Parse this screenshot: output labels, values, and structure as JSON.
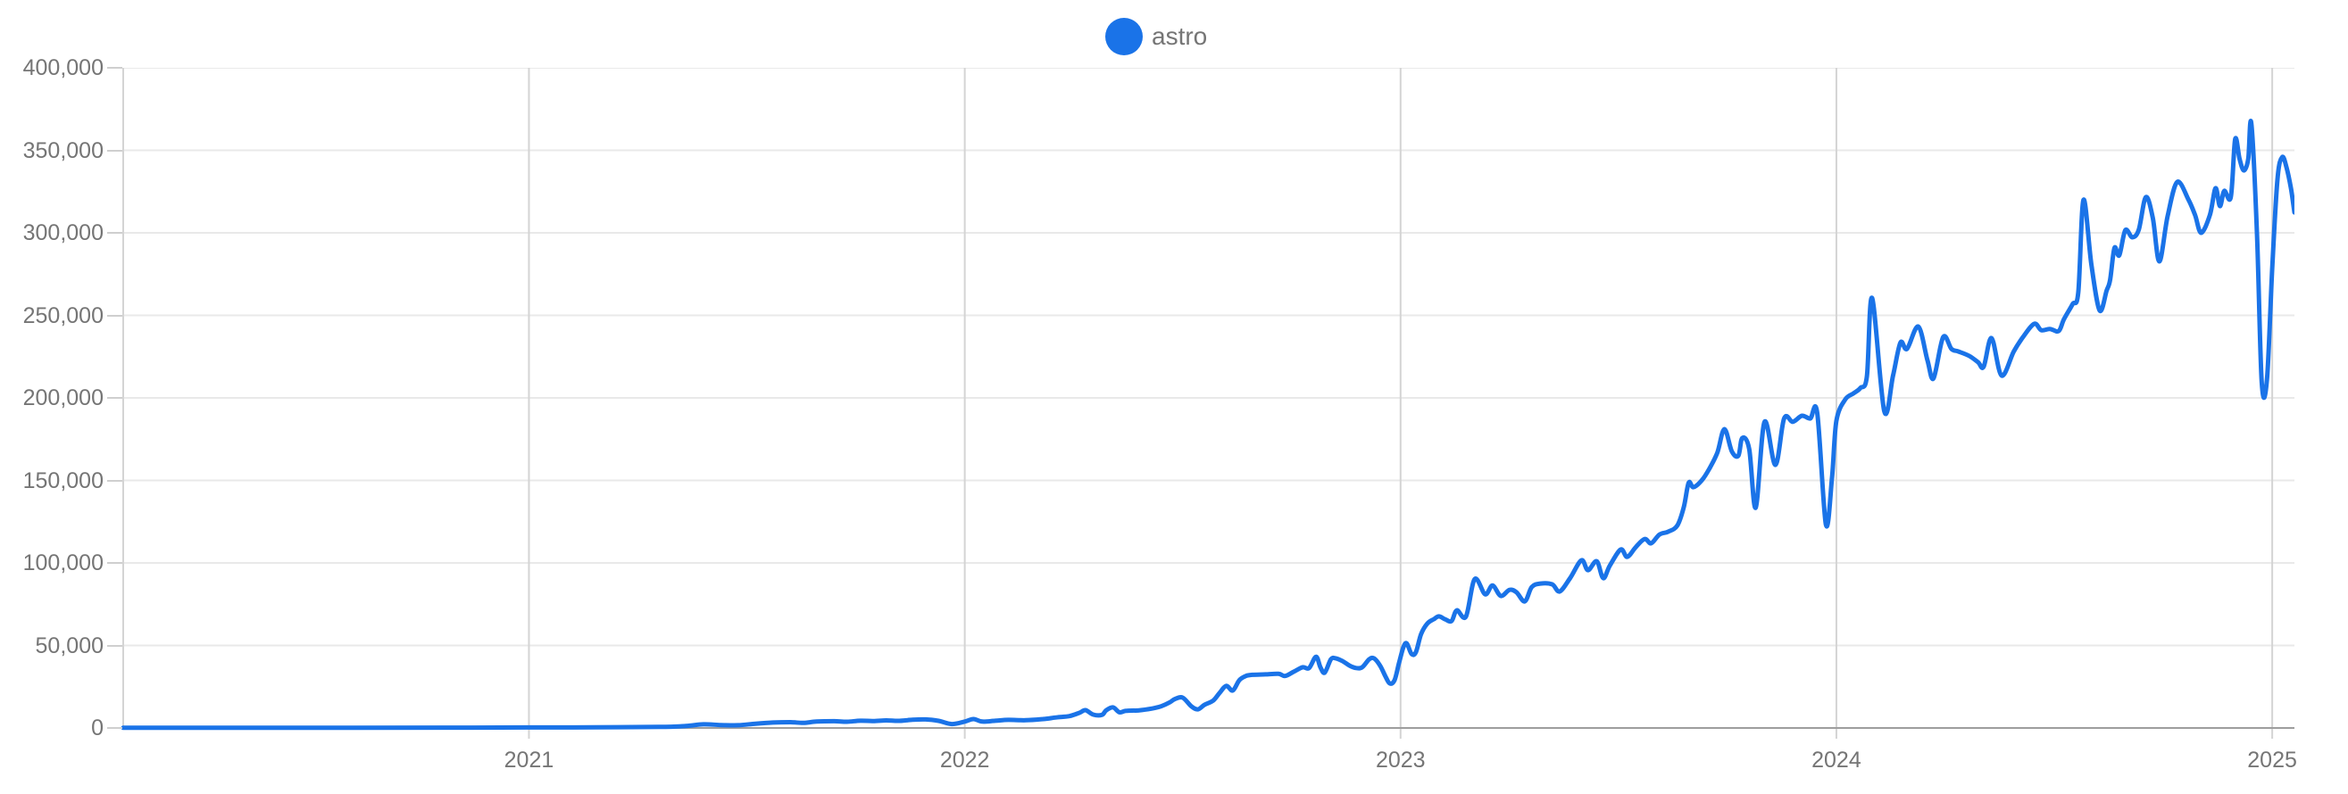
{
  "chart_data": {
    "type": "line",
    "title": "",
    "legend_position": "top-center",
    "x_axis": {
      "unit": "decimal_year",
      "range": [
        2020.069,
        2025.051
      ],
      "ticks": [
        2021,
        2022,
        2023,
        2024,
        2025
      ],
      "tick_labels": [
        "2021",
        "2022",
        "2023",
        "2024",
        "2025"
      ],
      "grid": true
    },
    "y_axis": {
      "range": [
        0,
        400000
      ],
      "ticks": [
        0,
        50000,
        100000,
        150000,
        200000,
        250000,
        300000,
        350000,
        400000
      ],
      "tick_labels": [
        "0",
        "50,000",
        "100,000",
        "150,000",
        "200,000",
        "250,000",
        "300,000",
        "350,000",
        "400,000"
      ],
      "grid": true
    },
    "style": {
      "h_grid_color": "#e9e9e9",
      "v_grid_color": "#d4d4d4",
      "axis_line_color": "#9e9e9e",
      "tick_dash_color": "#cfcfcf",
      "label_color": "#757575",
      "line_width": 5
    },
    "series": [
      {
        "name": "astro",
        "color": "#1a73e8",
        "points": [
          [
            2020.069,
            100
          ],
          [
            2020.2,
            120
          ],
          [
            2020.4,
            150
          ],
          [
            2020.6,
            180
          ],
          [
            2020.8,
            220
          ],
          [
            2021.0,
            300
          ],
          [
            2021.15,
            400
          ],
          [
            2021.3,
            650
          ],
          [
            2021.36,
            1200
          ],
          [
            2021.4,
            2200
          ],
          [
            2021.44,
            1800
          ],
          [
            2021.48,
            1700
          ],
          [
            2021.52,
            2600
          ],
          [
            2021.56,
            3300
          ],
          [
            2021.6,
            3500
          ],
          [
            2021.63,
            3100
          ],
          [
            2021.66,
            3900
          ],
          [
            2021.7,
            4100
          ],
          [
            2021.73,
            3800
          ],
          [
            2021.76,
            4400
          ],
          [
            2021.79,
            4200
          ],
          [
            2021.82,
            4600
          ],
          [
            2021.85,
            4300
          ],
          [
            2021.88,
            5000
          ],
          [
            2021.91,
            5200
          ],
          [
            2021.94,
            4300
          ],
          [
            2021.97,
            2400
          ],
          [
            2022.0,
            3900
          ],
          [
            2022.02,
            5400
          ],
          [
            2022.04,
            3900
          ],
          [
            2022.07,
            4400
          ],
          [
            2022.1,
            4900
          ],
          [
            2022.14,
            4700
          ],
          [
            2022.18,
            5400
          ],
          [
            2022.21,
            6400
          ],
          [
            2022.24,
            7200
          ],
          [
            2022.263,
            9200
          ],
          [
            2022.277,
            10800
          ],
          [
            2022.295,
            8100
          ],
          [
            2022.315,
            8000
          ],
          [
            2022.324,
            10600
          ],
          [
            2022.34,
            12500
          ],
          [
            2022.355,
            9500
          ],
          [
            2022.37,
            10400
          ],
          [
            2022.4,
            10700
          ],
          [
            2022.43,
            11800
          ],
          [
            2022.45,
            13100
          ],
          [
            2022.47,
            15500
          ],
          [
            2022.482,
            17500
          ],
          [
            2022.5,
            18400
          ],
          [
            2022.52,
            13100
          ],
          [
            2022.535,
            11300
          ],
          [
            2022.55,
            14000
          ],
          [
            2022.57,
            16600
          ],
          [
            2022.584,
            21000
          ],
          [
            2022.6,
            25500
          ],
          [
            2022.615,
            22700
          ],
          [
            2022.63,
            29000
          ],
          [
            2022.645,
            31500
          ],
          [
            2022.66,
            32200
          ],
          [
            2022.69,
            32500
          ],
          [
            2022.72,
            32800
          ],
          [
            2022.735,
            31500
          ],
          [
            2022.755,
            34100
          ],
          [
            2022.775,
            36800
          ],
          [
            2022.79,
            36300
          ],
          [
            2022.806,
            43200
          ],
          [
            2022.816,
            36800
          ],
          [
            2022.826,
            33500
          ],
          [
            2022.84,
            41600
          ],
          [
            2022.851,
            42200
          ],
          [
            2022.867,
            40500
          ],
          [
            2022.883,
            37800
          ],
          [
            2022.898,
            36300
          ],
          [
            2022.912,
            36800
          ],
          [
            2022.928,
            41600
          ],
          [
            2022.939,
            42200
          ],
          [
            2022.953,
            37800
          ],
          [
            2022.965,
            31400
          ],
          [
            2022.975,
            27000
          ],
          [
            2022.986,
            28900
          ],
          [
            2022.996,
            38900
          ],
          [
            2023.006,
            48600
          ],
          [
            2023.014,
            51300
          ],
          [
            2023.025,
            44900
          ],
          [
            2023.035,
            45900
          ],
          [
            2023.047,
            56800
          ],
          [
            2023.061,
            63200
          ],
          [
            2023.076,
            65900
          ],
          [
            2023.088,
            67600
          ],
          [
            2023.102,
            65900
          ],
          [
            2023.117,
            64800
          ],
          [
            2023.129,
            71300
          ],
          [
            2023.15,
            67500
          ],
          [
            2023.17,
            90200
          ],
          [
            2023.194,
            81000
          ],
          [
            2023.211,
            86400
          ],
          [
            2023.23,
            80000
          ],
          [
            2023.25,
            83700
          ],
          [
            2023.266,
            82200
          ],
          [
            2023.285,
            76700
          ],
          [
            2023.301,
            85400
          ],
          [
            2023.321,
            87500
          ],
          [
            2023.348,
            87000
          ],
          [
            2023.365,
            82700
          ],
          [
            2023.389,
            90800
          ],
          [
            2023.415,
            101600
          ],
          [
            2023.43,
            95600
          ],
          [
            2023.45,
            101000
          ],
          [
            2023.465,
            90800
          ],
          [
            2023.48,
            98300
          ],
          [
            2023.505,
            108100
          ],
          [
            2023.52,
            103700
          ],
          [
            2023.54,
            109700
          ],
          [
            2023.56,
            114500
          ],
          [
            2023.575,
            111900
          ],
          [
            2023.594,
            117200
          ],
          [
            2023.614,
            118900
          ],
          [
            2023.635,
            122700
          ],
          [
            2023.65,
            134000
          ],
          [
            2023.661,
            148600
          ],
          [
            2023.672,
            145900
          ],
          [
            2023.692,
            150300
          ],
          [
            2023.71,
            157800
          ],
          [
            2023.727,
            167000
          ],
          [
            2023.743,
            181100
          ],
          [
            2023.76,
            167600
          ],
          [
            2023.775,
            164900
          ],
          [
            2023.784,
            175700
          ],
          [
            2023.8,
            169000
          ],
          [
            2023.815,
            133500
          ],
          [
            2023.835,
            185400
          ],
          [
            2023.86,
            159400
          ],
          [
            2023.88,
            187500
          ],
          [
            2023.9,
            185500
          ],
          [
            2023.921,
            189200
          ],
          [
            2023.94,
            187500
          ],
          [
            2023.956,
            190800
          ],
          [
            2023.976,
            123200
          ],
          [
            2023.99,
            152000
          ],
          [
            2024.0,
            186000
          ],
          [
            2024.02,
            198900
          ],
          [
            2024.039,
            202700
          ],
          [
            2024.055,
            206000
          ],
          [
            2024.07,
            213000
          ],
          [
            2024.082,
            260500
          ],
          [
            2024.11,
            191900
          ],
          [
            2024.13,
            213500
          ],
          [
            2024.147,
            233500
          ],
          [
            2024.162,
            229700
          ],
          [
            2024.188,
            243200
          ],
          [
            2024.209,
            222700
          ],
          [
            2024.223,
            211900
          ],
          [
            2024.245,
            236800
          ],
          [
            2024.264,
            229700
          ],
          [
            2024.28,
            228100
          ],
          [
            2024.305,
            225400
          ],
          [
            2024.325,
            221600
          ],
          [
            2024.338,
            218900
          ],
          [
            2024.356,
            236200
          ],
          [
            2024.379,
            213500
          ],
          [
            2024.407,
            228100
          ],
          [
            2024.428,
            236800
          ],
          [
            2024.454,
            244900
          ],
          [
            2024.47,
            241000
          ],
          [
            2024.49,
            241800
          ],
          [
            2024.51,
            240500
          ],
          [
            2024.522,
            247600
          ],
          [
            2024.542,
            256800
          ],
          [
            2024.555,
            264000
          ],
          [
            2024.567,
            320000
          ],
          [
            2024.585,
            281000
          ],
          [
            2024.604,
            253000
          ],
          [
            2024.62,
            265000
          ],
          [
            2024.628,
            271400
          ],
          [
            2024.638,
            290800
          ],
          [
            2024.649,
            286400
          ],
          [
            2024.663,
            301600
          ],
          [
            2024.679,
            297300
          ],
          [
            2024.694,
            302000
          ],
          [
            2024.71,
            321600
          ],
          [
            2024.726,
            309200
          ],
          [
            2024.741,
            282700
          ],
          [
            2024.76,
            310000
          ],
          [
            2024.782,
            330800
          ],
          [
            2024.808,
            320000
          ],
          [
            2024.823,
            310800
          ],
          [
            2024.837,
            300000
          ],
          [
            2024.857,
            310800
          ],
          [
            2024.87,
            327000
          ],
          [
            2024.88,
            316200
          ],
          [
            2024.89,
            325400
          ],
          [
            2024.905,
            321600
          ],
          [
            2024.915,
            356700
          ],
          [
            2024.925,
            344900
          ],
          [
            2024.935,
            337800
          ],
          [
            2024.945,
            344900
          ],
          [
            2024.952,
            366400
          ],
          [
            2024.965,
            300000
          ],
          [
            2024.976,
            209200
          ],
          [
            2024.988,
            211000
          ],
          [
            2025.0,
            278400
          ],
          [
            2025.012,
            332400
          ],
          [
            2025.023,
            345900
          ],
          [
            2025.033,
            339500
          ],
          [
            2025.043,
            327000
          ],
          [
            2025.051,
            312400
          ]
        ]
      }
    ]
  }
}
